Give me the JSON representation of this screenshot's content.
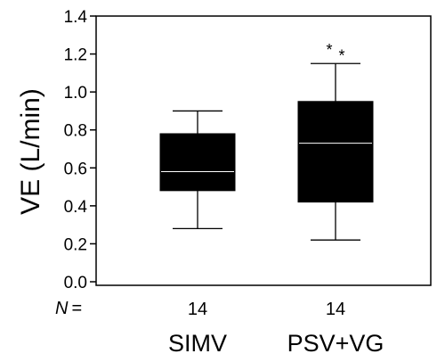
{
  "chart_data": {
    "type": "box",
    "ylabel": "VE (L/min)",
    "ylim": [
      0,
      1.4
    ],
    "yticks": [
      "0.0",
      "0.2",
      "0.4",
      "0.6",
      "0.8",
      "1.0",
      "1.2",
      "1.4"
    ],
    "categories": [
      "SIMV",
      "PSV+VG"
    ],
    "n_prefix": "N =",
    "n_values": [
      "14",
      "14"
    ],
    "boxes": [
      {
        "category": "SIMV",
        "whisker_low": 0.28,
        "q1": 0.48,
        "median": 0.58,
        "q3": 0.78,
        "whisker_high": 0.9,
        "outliers": []
      },
      {
        "category": "PSV+VG",
        "whisker_low": 0.22,
        "q1": 0.42,
        "median": 0.73,
        "q3": 0.95,
        "whisker_high": 1.15,
        "outliers": [
          1.24,
          1.21
        ]
      }
    ],
    "outlier_marker": "*",
    "box_color": "#000000",
    "median_color": "#ffffff"
  }
}
